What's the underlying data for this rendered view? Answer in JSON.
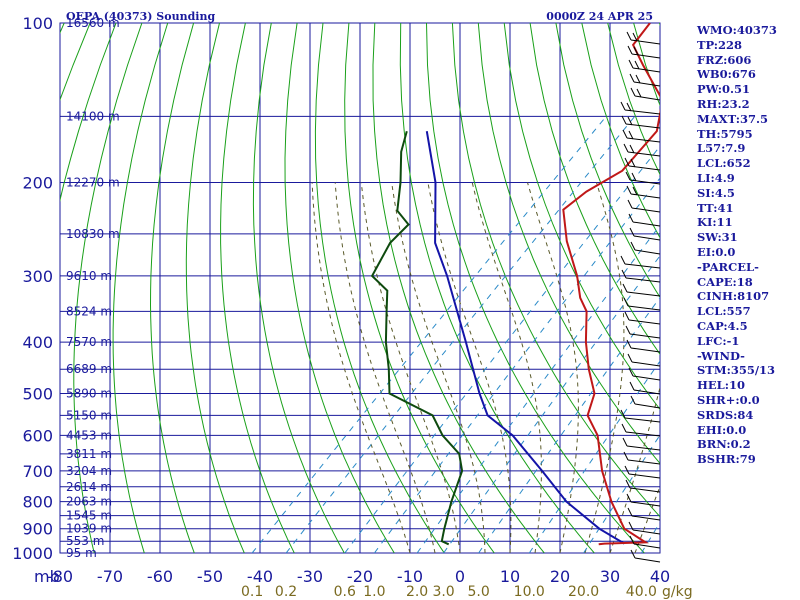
{
  "title": "OEPA (40373) Sounding",
  "time": "0000Z 24 APR 25",
  "indices": [
    "WMO:40373",
    "TP:228",
    "FRZ:606",
    "WB0:676",
    "PW:0.51",
    "RH:23.2",
    "MAXT:37.5",
    "TH:5795",
    "L57:7.9",
    "LCL:652",
    "LI:4.9",
    "SI:4.5",
    "TT:41",
    "KI:11",
    "SW:31",
    "EI:0.0",
    "-PARCEL-",
    "CAPE:18",
    "CINH:8107",
    "LCL:557",
    "CAP:4.5",
    "LFC:-1",
    "-WIND-",
    "STM:355/13",
    "HEL:10",
    "SHR+:0.0",
    "SRDS:84",
    "EHI:0.0",
    "BRN:0.2",
    "BSHR:79"
  ],
  "colors": {
    "frame": "#1a1a9c",
    "dry_adiabat": "#1aa01a",
    "moist_adiabat": "#5a5a2a",
    "mixing_ratio": "#2a8ac8",
    "temperature": "#c01818",
    "dewpoint": "#0e4a0e",
    "parcel": "#1414a8"
  },
  "chart_data": {
    "type": "skew-t log-p sounding",
    "pressure_ticks_mb": [
      100,
      200,
      300,
      400,
      500,
      600,
      700,
      800,
      900,
      1000
    ],
    "pressure_unit_label": "mb",
    "temperature_ticks_c": [
      -80,
      -70,
      -60,
      -50,
      -40,
      -30,
      -20,
      -10,
      0,
      10,
      20,
      30,
      40
    ],
    "mixing_ratio_ticks": [
      "0.1",
      "0.2",
      "0.6",
      "1.0",
      "2.0",
      "3.0",
      "5.0",
      "10.0",
      "20.0",
      "40.0"
    ],
    "mixing_ratio_unit": "g/kg",
    "height_labels": [
      {
        "p": 100,
        "label": "16560 m"
      },
      {
        "p": 150,
        "label": "14100 m"
      },
      {
        "p": 200,
        "label": "12270 m"
      },
      {
        "p": 250,
        "label": "10830 m"
      },
      {
        "p": 300,
        "label": "9610 m"
      },
      {
        "p": 350,
        "label": "8524 m"
      },
      {
        "p": 400,
        "label": "7570 m"
      },
      {
        "p": 450,
        "label": "6689 m"
      },
      {
        "p": 500,
        "label": "5890 m"
      },
      {
        "p": 550,
        "label": "5150 m"
      },
      {
        "p": 600,
        "label": "4453 m"
      },
      {
        "p": 650,
        "label": "3811 m"
      },
      {
        "p": 700,
        "label": "3204 m"
      },
      {
        "p": 750,
        "label": "2614 m"
      },
      {
        "p": 800,
        "label": "2063 m"
      },
      {
        "p": 850,
        "label": "1545 m"
      },
      {
        "p": 900,
        "label": "1039 m"
      },
      {
        "p": 950,
        "label": "553 m"
      },
      {
        "p": 1000,
        "label": "95 m"
      }
    ],
    "temperature_profile": [
      {
        "p": 100,
        "t": -68
      },
      {
        "p": 110,
        "t": -67
      },
      {
        "p": 120,
        "t": -61
      },
      {
        "p": 140,
        "t": -50
      },
      {
        "p": 160,
        "t": -45
      },
      {
        "p": 190,
        "t": -44
      },
      {
        "p": 208,
        "t": -47
      },
      {
        "p": 225,
        "t": -48
      },
      {
        "p": 258,
        "t": -41
      },
      {
        "p": 300,
        "t": -32
      },
      {
        "p": 330,
        "t": -27
      },
      {
        "p": 350,
        "t": -23
      },
      {
        "p": 400,
        "t": -17
      },
      {
        "p": 450,
        "t": -11
      },
      {
        "p": 500,
        "t": -5
      },
      {
        "p": 550,
        "t": -2
      },
      {
        "p": 600,
        "t": 4
      },
      {
        "p": 700,
        "t": 12
      },
      {
        "p": 800,
        "t": 20
      },
      {
        "p": 900,
        "t": 28
      },
      {
        "p": 955,
        "t": 35
      },
      {
        "p": 960,
        "t": 27
      },
      {
        "p": 963,
        "t": 26
      }
    ],
    "dewpoint_profile": [
      {
        "p": 160,
        "t": -95
      },
      {
        "p": 175,
        "t": -92
      },
      {
        "p": 200,
        "t": -86
      },
      {
        "p": 226,
        "t": -81
      },
      {
        "p": 240,
        "t": -76
      },
      {
        "p": 260,
        "t": -76
      },
      {
        "p": 300,
        "t": -73
      },
      {
        "p": 320,
        "t": -67
      },
      {
        "p": 350,
        "t": -63
      },
      {
        "p": 400,
        "t": -57
      },
      {
        "p": 450,
        "t": -51
      },
      {
        "p": 500,
        "t": -46
      },
      {
        "p": 550,
        "t": -33
      },
      {
        "p": 600,
        "t": -27
      },
      {
        "p": 650,
        "t": -20
      },
      {
        "p": 700,
        "t": -16
      },
      {
        "p": 800,
        "t": -12
      },
      {
        "p": 900,
        "t": -8
      },
      {
        "p": 950,
        "t": -6
      },
      {
        "p": 963,
        "t": -4
      }
    ],
    "parcel_profile": [
      {
        "p": 160,
        "t": -91
      },
      {
        "p": 200,
        "t": -79
      },
      {
        "p": 260,
        "t": -67
      },
      {
        "p": 300,
        "t": -58
      },
      {
        "p": 400,
        "t": -41
      },
      {
        "p": 500,
        "t": -28
      },
      {
        "p": 550,
        "t": -22
      },
      {
        "p": 600,
        "t": -13
      },
      {
        "p": 700,
        "t": 0
      },
      {
        "p": 800,
        "t": 11
      },
      {
        "p": 900,
        "t": 23
      },
      {
        "p": 960,
        "t": 31
      }
    ]
  }
}
